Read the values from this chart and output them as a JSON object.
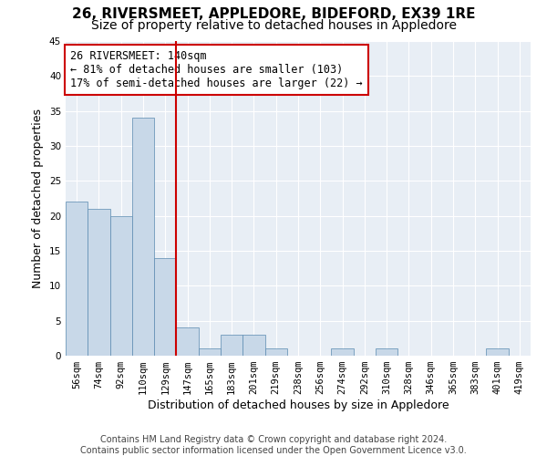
{
  "title": "26, RIVERSMEET, APPLEDORE, BIDEFORD, EX39 1RE",
  "subtitle": "Size of property relative to detached houses in Appledore",
  "xlabel": "Distribution of detached houses by size in Appledore",
  "ylabel": "Number of detached properties",
  "bar_color": "#c8d8e8",
  "bar_edge_color": "#5a8ab0",
  "background_color": "#e8eef5",
  "grid_color": "#ffffff",
  "categories": [
    "56sqm",
    "74sqm",
    "92sqm",
    "110sqm",
    "129sqm",
    "147sqm",
    "165sqm",
    "183sqm",
    "201sqm",
    "219sqm",
    "238sqm",
    "256sqm",
    "274sqm",
    "292sqm",
    "310sqm",
    "328sqm",
    "346sqm",
    "365sqm",
    "383sqm",
    "401sqm",
    "419sqm"
  ],
  "values": [
    22,
    21,
    20,
    34,
    14,
    4,
    1,
    3,
    3,
    1,
    0,
    0,
    1,
    0,
    1,
    0,
    0,
    0,
    0,
    1,
    0
  ],
  "ylim": [
    0,
    45
  ],
  "yticks": [
    0,
    5,
    10,
    15,
    20,
    25,
    30,
    35,
    40,
    45
  ],
  "vline_x": 4.5,
  "vline_color": "#cc0000",
  "annotation_title": "26 RIVERSMEET: 140sqm",
  "annotation_line1": "← 81% of detached houses are smaller (103)",
  "annotation_line2": "17% of semi-detached houses are larger (22) →",
  "annotation_box_color": "#cc0000",
  "footer_line1": "Contains HM Land Registry data © Crown copyright and database right 2024.",
  "footer_line2": "Contains public sector information licensed under the Open Government Licence v3.0.",
  "title_fontsize": 11,
  "subtitle_fontsize": 10,
  "axis_label_fontsize": 9,
  "tick_fontsize": 7.5,
  "annotation_fontsize": 8.5,
  "footer_fontsize": 7
}
